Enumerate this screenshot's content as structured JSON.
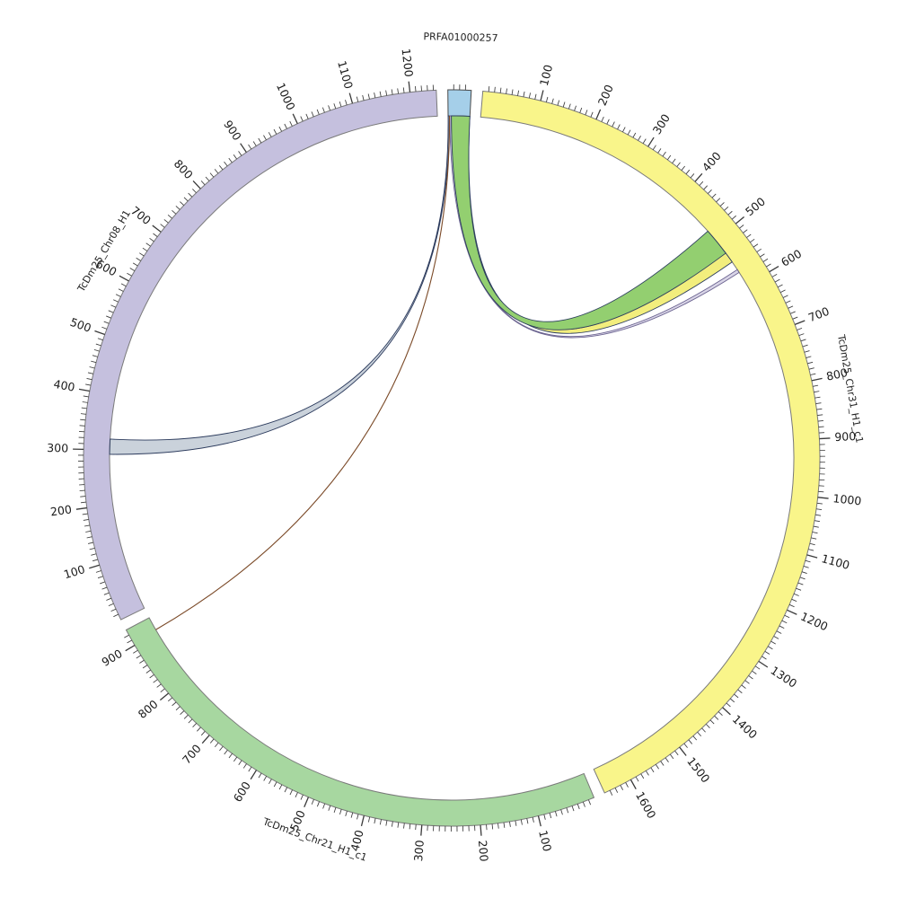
{
  "figure": {
    "background": "#ffffff"
  },
  "chart_data": {
    "type": "circos",
    "description": "Circular synteny (circos-style) plot linking contig PRFA01000257 to three chromosome sequences",
    "segments": [
      {
        "name": "PRFA01000257",
        "color": "#a5cfe9",
        "border": "#4a4a4a",
        "length": 40,
        "tick_minor": 10,
        "tick_major": 100,
        "tick_labels": []
      },
      {
        "name": "TcDm25_Chr31_H1_c1",
        "color": "#f9f58a",
        "border": "#7a7a7a",
        "length": 1650,
        "tick_minor": 10,
        "tick_major": 100,
        "tick_labels": [
          100,
          200,
          300,
          400,
          500,
          600,
          700,
          800,
          900,
          1000,
          1100,
          1200,
          1300,
          1400,
          1500,
          1600
        ]
      },
      {
        "name": "TcDm25_Chr21_H1_c1",
        "color": "#a7d7a0",
        "border": "#7a7a7a",
        "length": 930,
        "tick_minor": 10,
        "tick_major": 100,
        "tick_labels": [
          100,
          200,
          300,
          400,
          500,
          600,
          700,
          800,
          900
        ]
      },
      {
        "name": "TcDm25_Chr08_H1",
        "color": "#c5c0de",
        "border": "#7a7a7a",
        "length": 1245,
        "tick_minor": 10,
        "tick_major": 100,
        "tick_labels": [
          100,
          200,
          300,
          400,
          500,
          600,
          700,
          800,
          900,
          1000,
          1100,
          1200
        ]
      }
    ],
    "links": [
      {
        "kind": "ribbon",
        "source": "PRFA01000257",
        "source_range": [
          0,
          2
        ],
        "target": "TcDm25_Chr08_H1",
        "target_range": [
          292,
          320
        ],
        "fill": "rgba(45,74,110,0.25)",
        "stroke": "#2b3a5c",
        "stroke_width": 0.9
      },
      {
        "kind": "ribbon",
        "source": "PRFA01000257",
        "source_range": [
          3,
          6
        ],
        "target": "TcDm25_Chr31_H1_c1",
        "target_range": [
          567,
          573
        ],
        "fill": "rgba(185,178,212,0.55)",
        "stroke": "#6b6390",
        "stroke_width": 0.9
      },
      {
        "kind": "ribbon",
        "source": "PRFA01000257",
        "source_range": [
          36,
          40
        ],
        "target": "TcDm25_Chr31_H1_c1",
        "target_range": [
          528,
          550
        ],
        "fill": "#f2ee7d",
        "stroke": "#2c3e5e",
        "stroke_width": 0.9
      },
      {
        "kind": "ribbon",
        "source": "PRFA01000257",
        "source_range": [
          6,
          40
        ],
        "target": "TcDm25_Chr31_H1_c1",
        "target_range": [
          478,
          530
        ],
        "fill": "#93cf70",
        "stroke": "#2c3e5e",
        "stroke_width": 0.9
      },
      {
        "kind": "line",
        "source": "PRFA01000257",
        "source_range": [
          2.3,
          2.7
        ],
        "target": "TcDm25_Chr21_H1_c1",
        "target_range": [
          904,
          906
        ],
        "fill": "none",
        "stroke": "#7b4a28",
        "stroke_width": 1.1
      }
    ]
  }
}
